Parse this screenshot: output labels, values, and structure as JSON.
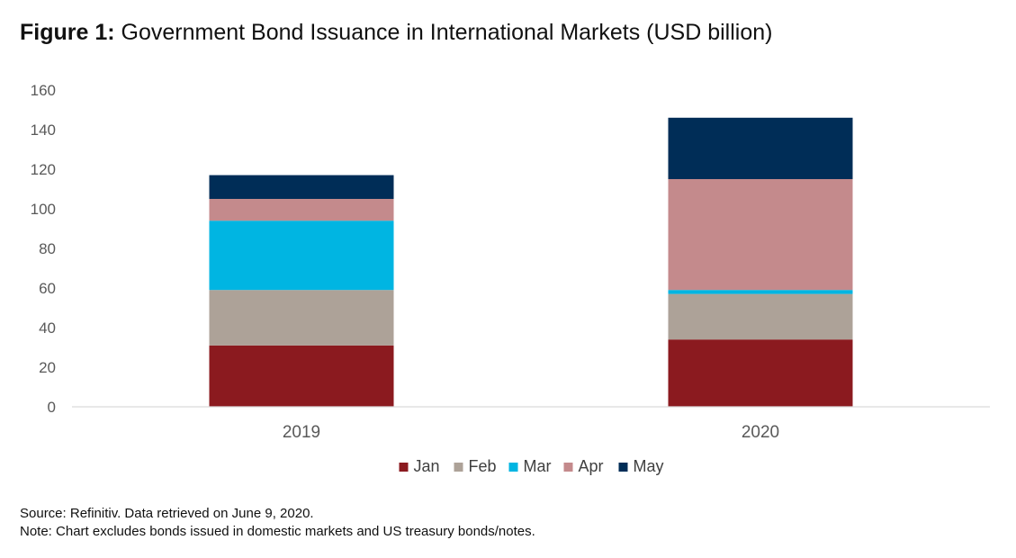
{
  "figure": {
    "label": "Figure 1",
    "separator": ":",
    "title": " Government Bond Issuance in International Markets (USD billion)"
  },
  "chart_data": {
    "type": "bar",
    "stacked": true,
    "categories": [
      "2019",
      "2020"
    ],
    "series": [
      {
        "name": "Jan",
        "color": "#8b1a1f",
        "values": [
          31,
          34
        ]
      },
      {
        "name": "Feb",
        "color": "#ada298",
        "values": [
          28,
          23
        ]
      },
      {
        "name": "Mar",
        "color": "#00b5e2",
        "values": [
          35,
          2
        ]
      },
      {
        "name": "Apr",
        "color": "#c48a8c",
        "values": [
          11,
          56
        ]
      },
      {
        "name": "May",
        "color": "#002d57",
        "values": [
          12,
          31
        ]
      }
    ],
    "ylim": [
      0,
      160
    ],
    "yticks": [
      0,
      20,
      40,
      60,
      80,
      100,
      120,
      140,
      160
    ],
    "grid": false,
    "legend_position": "bottom"
  },
  "footer": {
    "source": "Source: Refinitiv. Data retrieved on June 9, 2020.",
    "note": "Note: Chart excludes bonds issued in domestic markets and US treasury bonds/notes."
  }
}
